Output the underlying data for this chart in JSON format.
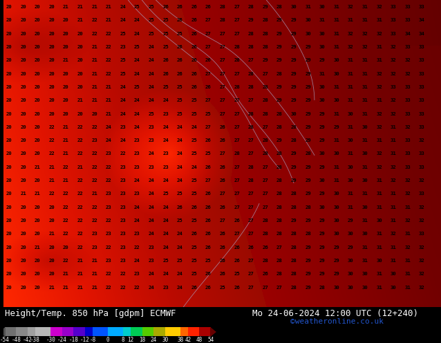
{
  "title_left": "Height/Temp. 850 hPa [gdpm] ECMWF",
  "title_right": "Mo 24-06-2024 12:00 UTC (12+240)",
  "credit": "©weatheronline.co.uk",
  "colorbar_boundaries": [
    -54,
    -48,
    -42,
    -38,
    -30,
    -24,
    -18,
    -12,
    -8,
    0,
    8,
    12,
    18,
    24,
    30,
    38,
    42,
    48,
    54
  ],
  "colorbar_colors": [
    "#707070",
    "#888888",
    "#a0a0a0",
    "#b8b8b8",
    "#cc00cc",
    "#9900cc",
    "#5500cc",
    "#0000cc",
    "#0055ff",
    "#00aaff",
    "#00cccc",
    "#00cc55",
    "#55cc00",
    "#aaaa00",
    "#ffcc00",
    "#ff6600",
    "#ff2200",
    "#aa0000"
  ],
  "title_fontsize": 9,
  "credit_color": "#2255cc",
  "credit_fontsize": 8,
  "map_bg_colors": {
    "top_left": "#ff8800",
    "top_right": "#cc0000",
    "mid_left": "#cc3300",
    "mid_center": "#cc0000",
    "dark_patch": "#660000",
    "orange_patch": "#ff6600",
    "bottom": "#cc2200"
  }
}
